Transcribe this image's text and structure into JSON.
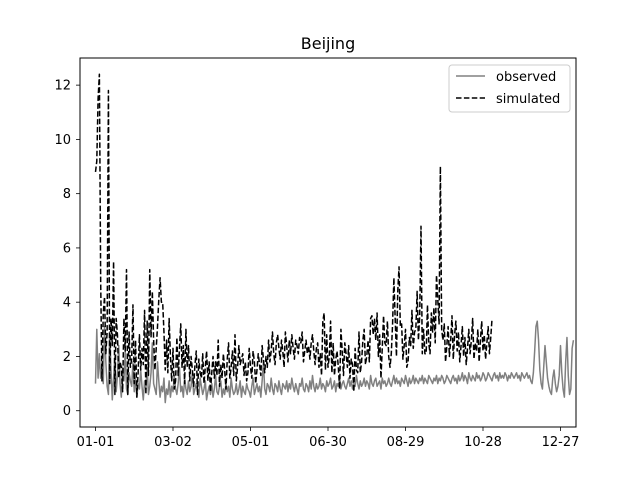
{
  "chart_data": {
    "type": "line",
    "title": "Beijing",
    "xlabel": "",
    "ylabel": "",
    "x_tick_labels": [
      "01-01",
      "03-02",
      "05-01",
      "06-30",
      "08-29",
      "10-28",
      "12-27"
    ],
    "y_ticks": [
      0,
      2,
      4,
      6,
      8,
      10,
      12
    ],
    "xlim": [
      -12,
      372
    ],
    "ylim": [
      -0.6,
      13.0
    ],
    "grid": false,
    "legend_position": "top-right",
    "series": [
      {
        "name": "observed",
        "color": "#808080",
        "style": "solid",
        "x_start": 0,
        "values": [
          1.0,
          3.0,
          1.2,
          2.1,
          1.2,
          1.6,
          1.0,
          3.1,
          1.8,
          0.9,
          0.6,
          2.9,
          1.5,
          0.4,
          1.2,
          2.0,
          0.7,
          1.3,
          2.4,
          1.0,
          0.5,
          1.6,
          1.1,
          2.2,
          0.8,
          0.6,
          1.4,
          1.1,
          0.9,
          1.8,
          0.7,
          1.2,
          0.5,
          1.0,
          0.8,
          1.5,
          0.9,
          0.4,
          1.1,
          0.8,
          1.6,
          0.6,
          0.9,
          1.4,
          2.5,
          1.0,
          0.8,
          0.6,
          1.8,
          1.1,
          0.5,
          0.9,
          0.7,
          1.2,
          0.3,
          0.8,
          0.6,
          1.1,
          0.5,
          0.9,
          0.7,
          1.3,
          0.8,
          0.6,
          1.0,
          1.6,
          0.7,
          0.9,
          0.5,
          1.2,
          0.8,
          0.6,
          1.1,
          0.7,
          0.9,
          1.4,
          0.6,
          0.8,
          1.0,
          0.7,
          0.5,
          1.2,
          0.9,
          0.6,
          0.8,
          1.1,
          0.4,
          0.7,
          0.9,
          0.6,
          1.0,
          0.5,
          0.8,
          1.3,
          0.7,
          0.6,
          0.9,
          1.1,
          0.5,
          0.8,
          0.6,
          1.0,
          0.7,
          0.9,
          0.5,
          1.2,
          0.8,
          0.6,
          0.7,
          1.0,
          0.6,
          0.8,
          1.1,
          0.5,
          0.9,
          0.7,
          0.6,
          1.0,
          0.8,
          0.7,
          0.5,
          0.9,
          1.2,
          0.6,
          0.8,
          1.0,
          0.7,
          0.9,
          0.5,
          1.1,
          1.8,
          0.8,
          0.6,
          1.0,
          0.9,
          0.7,
          1.2,
          0.8,
          0.6,
          1.0,
          0.9,
          0.7,
          1.1,
          0.8,
          0.6,
          1.0,
          0.9,
          0.8,
          1.1,
          0.7,
          1.0,
          0.8,
          1.2,
          0.9,
          0.7,
          1.0,
          0.8,
          0.6,
          1.0,
          0.9,
          1.2,
          0.8,
          0.7,
          1.0,
          0.9,
          0.7,
          1.1,
          0.8,
          1.3,
          0.9,
          0.7,
          1.0,
          0.8,
          0.9,
          1.2,
          0.8,
          1.0,
          0.9,
          0.7,
          1.1,
          0.9,
          1.0,
          1.2,
          0.8,
          0.9,
          1.1,
          0.7,
          1.0,
          0.9,
          1.2,
          0.8,
          1.0,
          1.1,
          0.9,
          0.8,
          1.0,
          1.2,
          0.9,
          1.1,
          0.8,
          1.0,
          0.9,
          1.3,
          1.0,
          0.8,
          1.1,
          0.9,
          1.0,
          1.2,
          0.9,
          1.1,
          1.0,
          0.8,
          1.3,
          1.0,
          0.9,
          1.1,
          1.2,
          0.9,
          1.0,
          1.1,
          0.8,
          1.2,
          1.0,
          1.1,
          0.9,
          1.0,
          1.2,
          1.0,
          0.9,
          1.1,
          1.3,
          1.0,
          1.2,
          1.0,
          1.1,
          0.9,
          1.2,
          1.1,
          1.0,
          1.3,
          1.1,
          0.9,
          1.2,
          1.0,
          1.1,
          1.3,
          1.0,
          1.2,
          1.1,
          1.0,
          1.2,
          1.1,
          1.3,
          1.0,
          1.2,
          1.1,
          1.0,
          1.3,
          1.2,
          1.1,
          1.0,
          1.2,
          1.1,
          1.3,
          1.0,
          1.2,
          1.1,
          1.3,
          1.2,
          1.0,
          1.1,
          1.3,
          1.2,
          1.1,
          1.0,
          1.2,
          1.3,
          1.1,
          1.2,
          1.0,
          1.3,
          1.1,
          1.2,
          1.4,
          1.1,
          1.3,
          1.2,
          1.0,
          1.4,
          1.2,
          1.1,
          1.3,
          1.2,
          1.1,
          1.4,
          1.2,
          1.3,
          1.1,
          1.2,
          1.4,
          1.3,
          1.1,
          1.2,
          1.4,
          1.3,
          1.2,
          1.1,
          1.3,
          1.4,
          1.2,
          1.3,
          1.1,
          1.4,
          1.2,
          1.3,
          1.2,
          1.4,
          1.3,
          1.1,
          1.3,
          1.2,
          1.4,
          1.3,
          1.2,
          1.3,
          1.4,
          1.2,
          1.3,
          1.1,
          1.4,
          1.3,
          1.2,
          1.3,
          1.4,
          1.2,
          1.3,
          1.1,
          1.0,
          1.4,
          2.2,
          3.1,
          3.3,
          2.6,
          1.5,
          1.0,
          0.8,
          1.6,
          2.4,
          1.8,
          1.2,
          0.9,
          0.7,
          0.6,
          1.2,
          1.5,
          1.0,
          0.7,
          0.9,
          1.3,
          2.4,
          1.4,
          0.8,
          0.5,
          1.8,
          2.7,
          1.3,
          0.6,
          0.8,
          2.3,
          2.6
        ]
      },
      {
        "name": "simulated",
        "color": "#000000",
        "style": "dashed",
        "x_start": 0,
        "values": [
          8.8,
          9.2,
          11.5,
          12.4,
          4.8,
          1.1,
          3.6,
          4.2,
          2.1,
          2.9,
          11.8,
          1.0,
          3.4,
          2.4,
          5.5,
          0.6,
          3.4,
          2.8,
          1.2,
          1.8,
          1.6,
          0.7,
          3.4,
          2.2,
          5.2,
          0.6,
          2.9,
          1.6,
          1.9,
          3.9,
          1.0,
          2.6,
          0.5,
          1.4,
          2.8,
          1.5,
          2.3,
          1.7,
          3.7,
          0.6,
          3.3,
          1.3,
          5.2,
          2.7,
          4.4,
          2.6,
          1.5,
          2.3,
          3.1,
          4.1,
          4.9,
          4.0,
          4.0,
          2.9,
          1.5,
          2.6,
          1.4,
          3.4,
          2.0,
          1.1,
          2.3,
          0.8,
          1.1,
          2.7,
          1.3,
          2.3,
          3.2,
          1.6,
          2.4,
          1.0,
          3.0,
          1.6,
          2.4,
          1.1,
          2.0,
          1.5,
          0.9,
          1.7,
          2.2,
          0.6,
          1.9,
          1.4,
          1.2,
          2.1,
          1.0,
          1.6,
          2.2,
          1.1,
          1.8,
          0.7,
          1.4,
          2.0,
          1.2,
          1.8,
          1.3,
          2.6,
          0.9,
          1.7,
          1.2,
          2.1,
          1.5,
          0.8,
          1.9,
          2.5,
          1.2,
          1.6,
          2.2,
          1.3,
          2.8,
          1.1,
          1.6,
          2.4,
          1.7,
          1.9,
          2.1,
          1.3,
          1.8,
          1.1,
          1.4,
          2.3,
          1.6,
          1.2,
          2.2,
          1.8,
          1.0,
          1.5,
          2.1,
          1.7,
          1.3,
          2.4,
          1.9,
          1.4,
          2.0,
          1.6,
          2.6,
          1.8,
          2.2,
          2.9,
          2.1,
          1.7,
          2.5,
          2.8,
          2.3,
          1.9,
          2.6,
          2.2,
          1.6,
          2.9,
          2.4,
          1.8,
          2.6,
          2.1,
          2.8,
          2.3,
          1.9,
          2.6,
          2.4,
          2.1,
          2.7,
          2.5,
          2.9,
          1.8,
          2.2,
          2.6,
          2.1,
          2.4,
          1.9,
          2.5,
          2.8,
          2.2,
          1.7,
          2.3,
          2.5,
          1.6,
          2.1,
          1.3,
          3.3,
          3.6,
          1.5,
          2.8,
          1.6,
          2.0,
          3.3,
          1.4,
          2.5,
          1.3,
          1.9,
          2.2,
          1.6,
          0.8,
          3.0,
          2.2,
          1.3,
          2.5,
          2.1,
          1.6,
          2.4,
          1.2,
          1.9,
          1.7,
          0.7,
          2.3,
          1.5,
          1.4,
          2.9,
          1.4,
          1.8,
          2.6,
          3.0,
          1.7,
          2.0,
          2.6,
          1.8,
          3.4,
          3.5,
          2.8,
          3.4,
          2.6,
          3.6,
          2.0,
          2.8,
          1.2,
          2.3,
          3.5,
          2.5,
          2.4,
          3.3,
          2.0,
          1.6,
          2.1,
          3.2,
          4.9,
          3.4,
          2.0,
          4.4,
          5.3,
          3.1,
          3.2,
          1.9,
          2.4,
          3.0,
          1.6,
          1.8,
          2.7,
          2.4,
          3.7,
          2.3,
          2.9,
          3.0,
          4.4,
          2.6,
          3.5,
          6.8,
          2.1,
          3.0,
          2.1,
          2.1,
          3.9,
          2.5,
          2.1,
          3.6,
          2.9,
          3.8,
          2.5,
          5.0,
          4.1,
          3.2,
          9.0,
          3.0,
          2.6,
          3.2,
          1.8,
          2.4,
          3.1,
          2.0,
          2.6,
          3.5,
          1.9,
          2.8,
          3.3,
          2.2,
          2.9,
          1.8,
          2.4,
          3.1,
          2.0,
          2.7,
          1.7,
          2.3,
          3.0,
          2.1,
          2.6,
          3.4,
          1.9,
          2.5,
          2.2,
          3.0,
          1.8,
          2.6,
          3.3,
          2.2,
          2.8,
          1.9,
          2.5,
          3.1,
          2.1,
          2.7,
          3.4
        ]
      }
    ]
  }
}
